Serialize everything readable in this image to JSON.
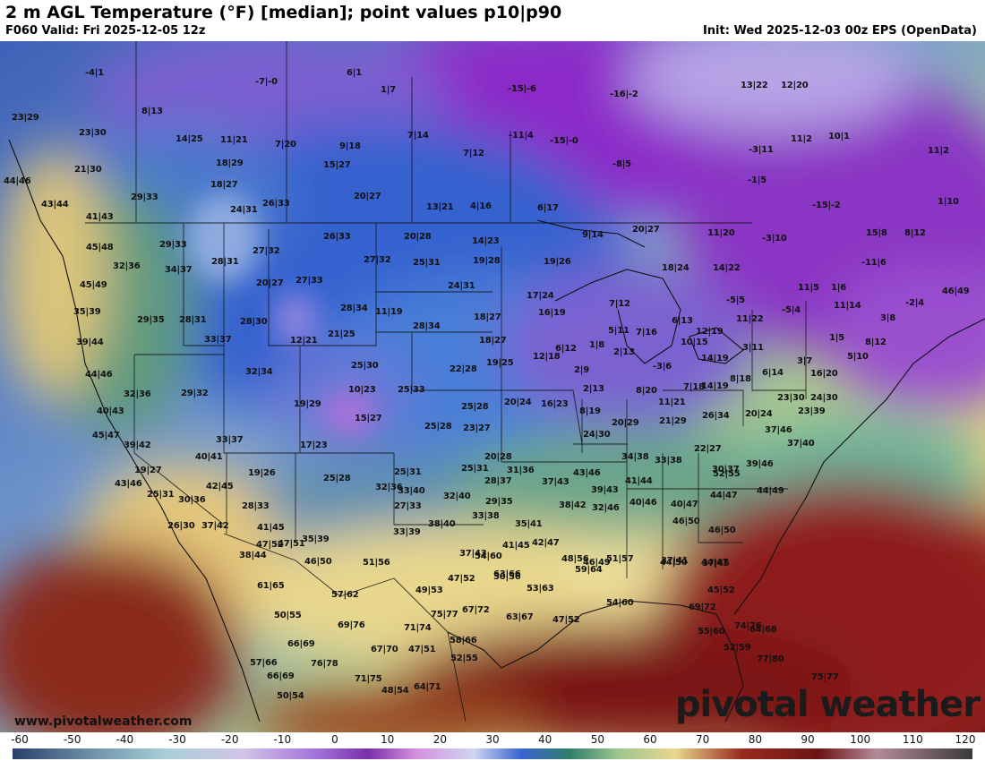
{
  "header": {
    "title": "2 m AGL Temperature (°F) [median]; point values p10|p90",
    "valid": "F060 Valid: Fri 2025-12-05 12z",
    "init": "Init: Wed 2025-12-03 00z EPS (OpenData)"
  },
  "watermark": {
    "site": "www.pivotalweather.com",
    "brand": "pivotal weather"
  },
  "legend": {
    "ticks": [
      "-60",
      "-50",
      "-40",
      "-30",
      "-20",
      "-10",
      "0",
      "10",
      "20",
      "30",
      "40",
      "50",
      "60",
      "70",
      "80",
      "90",
      "100",
      "110",
      "120"
    ]
  },
  "colors": {
    "cold": "#8a2fc8",
    "freezing": "#3b6fd6",
    "mild": "#8cc98a",
    "warm": "#e9d98a",
    "hot": "#8a1a1a"
  },
  "points": [
    "-4|1",
    "-7|-0",
    "6|1",
    "1|7",
    "-15|-6",
    "-16|-2",
    "13|22",
    "12|20",
    "23|29",
    "8|13",
    "23|30",
    "14|25",
    "11|21",
    "7|20",
    "9|18",
    "7|14",
    "-11|4",
    "-15|-0",
    "-3|11",
    "11|2",
    "10|1",
    "11|2",
    "21|30",
    "18|29",
    "18|27",
    "15|27",
    "7|12",
    "-8|5",
    "44|46",
    "43|44",
    "29|33",
    "24|31",
    "26|33",
    "20|27",
    "13|21",
    "4|16",
    "6|17",
    "-1|5",
    "-15|-2",
    "1|10",
    "41|43",
    "9|14",
    "20|27",
    "11|20",
    "-3|10",
    "15|8",
    "8|12",
    "45|48",
    "29|33",
    "26|33",
    "20|28",
    "14|23",
    "32|36",
    "34|37",
    "28|31",
    "27|32",
    "27|32",
    "25|31",
    "19|28",
    "19|26",
    "18|24",
    "14|22",
    "-11|6",
    "45|49",
    "20|27",
    "27|33",
    "24|31",
    "17|24",
    "7|12",
    "16|19",
    "-5|5",
    "11|5",
    "1|6",
    "46|49",
    "35|39",
    "29|35",
    "28|31",
    "28|30",
    "28|34",
    "11|19",
    "5|11",
    "7|16",
    "6|13",
    "12|19",
    "11|22",
    "-5|4",
    "11|14",
    "-2|4",
    "3|8",
    "39|44",
    "33|37",
    "12|21",
    "21|25",
    "28|34",
    "18|27",
    "18|27",
    "1|8",
    "10|15",
    "3|11",
    "14|19",
    "1|5",
    "8|12",
    "44|46",
    "32|34",
    "25|30",
    "22|28",
    "19|25",
    "12|18",
    "6|12",
    "2|13",
    "-3|6",
    "14|19",
    "3|7",
    "5|10",
    "32|36",
    "29|32",
    "10|23",
    "25|33",
    "2|9",
    "8|18",
    "6|14",
    "16|20",
    "40|43",
    "19|29",
    "15|27",
    "25|28",
    "20|24",
    "16|23",
    "2|13",
    "8|20",
    "7|18",
    "11|21",
    "23|30",
    "24|30",
    "45|47",
    "33|37",
    "17|23",
    "25|28",
    "23|27",
    "8|19",
    "20|29",
    "21|29",
    "26|34",
    "20|24",
    "23|39",
    "39|42",
    "40|41",
    "25|31",
    "25|31",
    "20|28",
    "24|30",
    "37|46",
    "37|40",
    "19|27",
    "19|26",
    "25|28",
    "28|37",
    "31|36",
    "34|38",
    "33|38",
    "22|27",
    "30|37",
    "39|46",
    "43|46",
    "25|31",
    "30|36",
    "33|40",
    "43|46",
    "52|55",
    "42|45",
    "28|33",
    "32|36",
    "27|33",
    "32|40",
    "29|35",
    "37|43",
    "39|43",
    "41|44",
    "40|46",
    "40|47",
    "44|47",
    "44|49",
    "26|30",
    "37|42",
    "41|45",
    "47|52",
    "38|40",
    "33|38",
    "35|41",
    "38|42",
    "32|46",
    "46|50",
    "46|50",
    "54|60",
    "35|39",
    "33|39",
    "37|43",
    "41|45",
    "42|47",
    "48|56",
    "46|49",
    "37|41",
    "37|45",
    "38|44",
    "47|51",
    "46|50",
    "51|56",
    "50|56",
    "53|63",
    "59|64",
    "51|57",
    "44|50",
    "44|47",
    "61|65",
    "57|62",
    "47|52",
    "63|66",
    "45|52",
    "50|55",
    "49|53",
    "69|72",
    "69|76",
    "75|77",
    "67|72",
    "63|67",
    "47|52",
    "54|60",
    "74|76",
    "66|69",
    "71|74",
    "58|66",
    "64|68",
    "55|60",
    "52|59",
    "57|66",
    "76|78",
    "67|70",
    "47|51",
    "52|55",
    "77|80",
    "66|69",
    "71|75",
    "48|54",
    "64|71",
    "75|77",
    "50|54"
  ]
}
